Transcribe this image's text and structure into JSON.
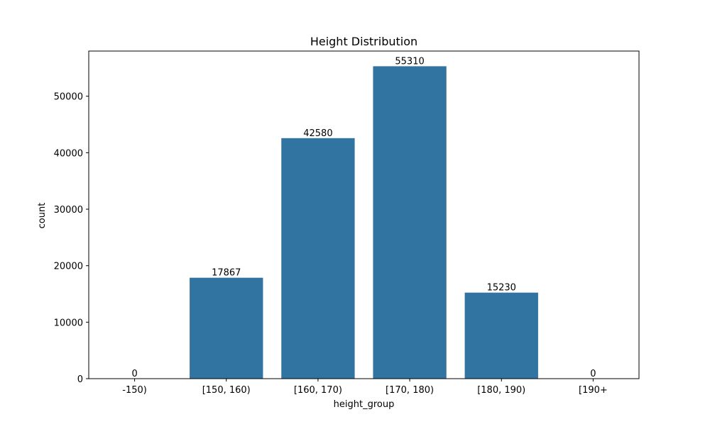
{
  "colors": {
    "bar": "#3274a1",
    "axis": "#000000",
    "background": "#ffffff"
  },
  "chart_data": {
    "type": "bar",
    "title": "Height Distribution",
    "xlabel": "height_group",
    "ylabel": "count",
    "categories": [
      "-150)",
      "[150, 160)",
      "[160, 170)",
      "[170, 180)",
      "[180, 190)",
      "[190+"
    ],
    "values": [
      0,
      17867,
      42580,
      55310,
      15230,
      0
    ],
    "data_labels": [
      "0",
      "17867",
      "42580",
      "55310",
      "15230",
      "0"
    ],
    "ylim": [
      0,
      58000
    ],
    "yticks": [
      0,
      10000,
      20000,
      30000,
      40000,
      50000
    ],
    "ytick_labels": [
      "0",
      "10000",
      "20000",
      "30000",
      "40000",
      "50000"
    ],
    "grid": false,
    "legend": "none"
  }
}
